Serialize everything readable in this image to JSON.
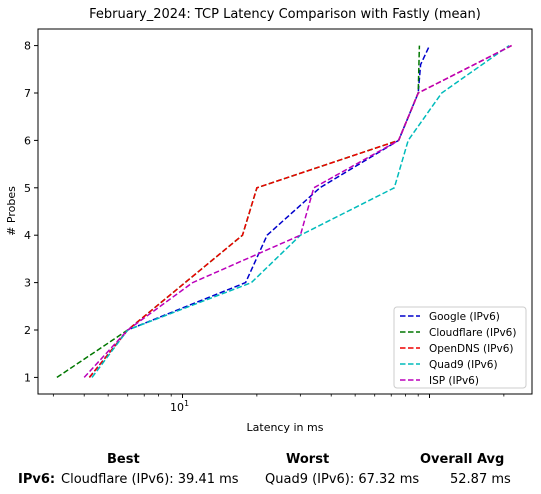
{
  "chart_data": {
    "type": "line",
    "title": "February_2024: TCP Latency Comparison with Fastly (mean)",
    "xlabel": "Latency in ms",
    "ylabel": "# Probes",
    "xscale": "log",
    "xlim": [
      2.6,
      260
    ],
    "ylim": [
      0.65,
      8.35
    ],
    "x_ticks": [
      {
        "value": 10,
        "base": "10",
        "exp": "1"
      }
    ],
    "y_ticks": [
      1,
      2,
      3,
      4,
      5,
      6,
      7,
      8
    ],
    "grid": false,
    "legend_position": "lower-right",
    "series": [
      {
        "name": "Google (IPv6)",
        "color": "#0000cc",
        "style": "dashed",
        "x": [
          4.2,
          6.0,
          18.0,
          22.0,
          36.0,
          75.0,
          90.0,
          92.0,
          100.0
        ],
        "y": [
          1,
          2,
          3,
          4,
          5,
          6,
          7,
          7.6,
          8
        ]
      },
      {
        "name": "Cloudflare (IPv6)",
        "color": "#007700",
        "style": "dashed",
        "x": [
          3.1,
          6.0,
          17.5,
          20.0,
          75.0,
          90.0,
          91.0
        ],
        "y": [
          1,
          2,
          4,
          5,
          6,
          7,
          8
        ]
      },
      {
        "name": "OpenDNS (IPv6)",
        "color": "#ee0000",
        "style": "dashed",
        "x": [
          4.2,
          6.0,
          17.5,
          20.0,
          75.0,
          90.0,
          215.0
        ],
        "y": [
          1,
          2,
          4,
          5,
          6,
          7,
          8
        ]
      },
      {
        "name": "Quad9 (IPv6)",
        "color": "#00bbbb",
        "style": "dashed",
        "x": [
          4.3,
          6.0,
          19.0,
          30.0,
          72.0,
          82.0,
          112.0,
          210.0
        ],
        "y": [
          1,
          2,
          3,
          4,
          5,
          6,
          7,
          8
        ]
      },
      {
        "name": "ISP (IPv6)",
        "color": "#bb00bb",
        "style": "dashed",
        "x": [
          4.0,
          6.0,
          11.0,
          30.0,
          34.0,
          75.0,
          90.0,
          215.0
        ],
        "y": [
          1,
          2,
          3,
          4,
          5,
          6,
          7,
          8
        ]
      }
    ]
  },
  "summary": {
    "headers": {
      "best": "Best",
      "worst": "Worst",
      "overall": "Overall Avg"
    },
    "row_label": "IPv6:",
    "best": "Cloudflare (IPv6): 39.41 ms",
    "worst": "Quad9 (IPv6): 67.32 ms",
    "overall": "52.87 ms"
  }
}
